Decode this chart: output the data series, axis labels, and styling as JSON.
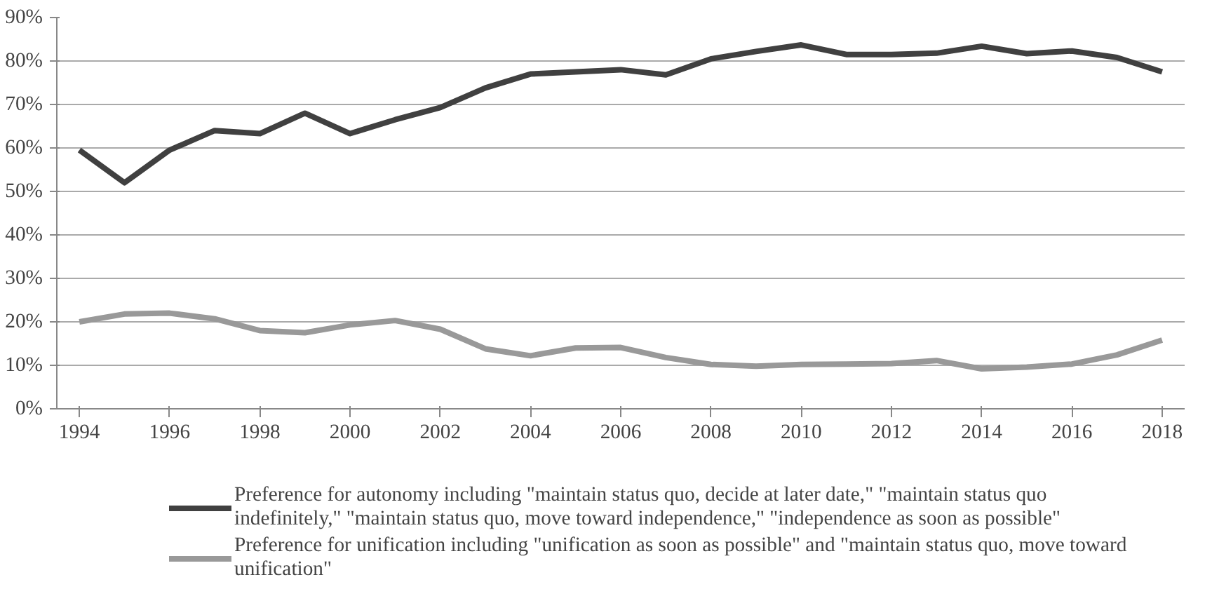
{
  "chart_data": {
    "type": "line",
    "x": [
      1994,
      1995,
      1996,
      1997,
      1998,
      1999,
      2000,
      2001,
      2002,
      2003,
      2004,
      2005,
      2006,
      2007,
      2008,
      2009,
      2010,
      2011,
      2012,
      2013,
      2014,
      2015,
      2016,
      2017,
      2018
    ],
    "series": [
      {
        "name": "Preference for autonomy including \"maintain status quo, decide at later date,\" \"maintain status quo indefinitely,\" \"maintain status quo, move toward independence,\" \"independence as soon as possible\"",
        "color": "#404040",
        "values": [
          59.5,
          52,
          59.5,
          64,
          63.3,
          68,
          63.3,
          66.5,
          69.3,
          73.8,
          77,
          77.5,
          78,
          76.8,
          80.5,
          82.2,
          83.7,
          81.5,
          81.5,
          81.8,
          83.4,
          81.7,
          82.3,
          80.8,
          77.5
        ]
      },
      {
        "name": "Preference for unification including \"unification as soon as possible\" and \"maintain status quo, move toward unification\"",
        "color": "#999999",
        "values": [
          20,
          21.8,
          22,
          20.7,
          18,
          17.5,
          19.3,
          20.3,
          18.3,
          13.8,
          12.2,
          14,
          14.1,
          11.8,
          10.2,
          9.8,
          10.2,
          10.3,
          10.4,
          11.1,
          9.2,
          9.6,
          10.3,
          12.4,
          15.8
        ]
      }
    ],
    "xlim": [
      1993.5,
      2018.5
    ],
    "xticks": [
      1994,
      1996,
      1998,
      2000,
      2002,
      2004,
      2006,
      2008,
      2010,
      2012,
      2014,
      2016,
      2018
    ],
    "ylim": [
      0,
      90
    ],
    "yticks": [
      {
        "value": 0,
        "label": "0%"
      },
      {
        "value": 10,
        "label": "10%"
      },
      {
        "value": 20,
        "label": "20%"
      },
      {
        "value": 30,
        "label": "30%"
      },
      {
        "value": 40,
        "label": "40%"
      },
      {
        "value": 50,
        "label": "50%"
      },
      {
        "value": 60,
        "label": "60%"
      },
      {
        "value": 70,
        "label": "70%"
      },
      {
        "value": 80,
        "label": "80%"
      },
      {
        "value": 90,
        "label": "90%"
      }
    ],
    "grid": "y",
    "legend": "bottom",
    "line_style": "solid"
  }
}
